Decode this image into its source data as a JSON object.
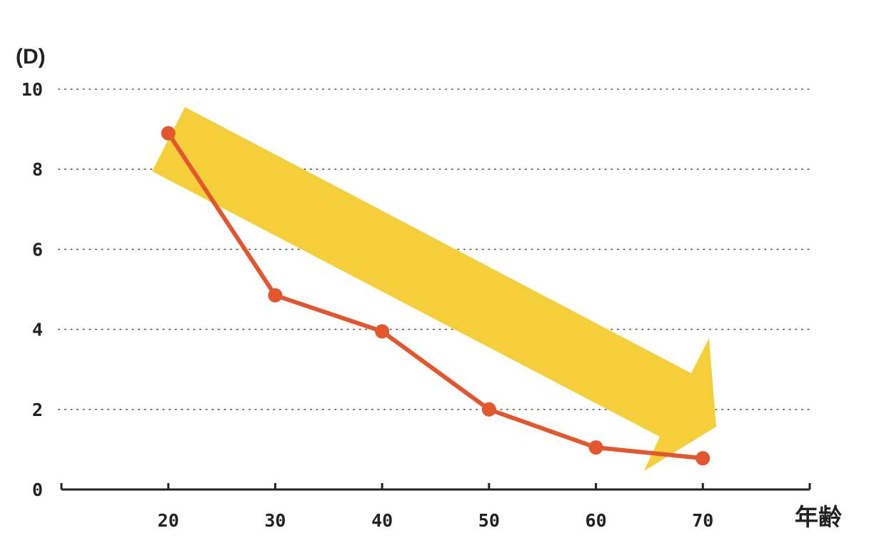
{
  "chart_data": {
    "type": "line",
    "title": "",
    "ylabel_unit": "(D)",
    "xlabel": "年齢",
    "x": [
      20,
      30,
      40,
      50,
      60,
      70
    ],
    "series": [
      {
        "values": [
          8.9,
          4.85,
          3.95,
          2.0,
          1.05,
          0.78
        ],
        "color": "#e4572e"
      }
    ],
    "xlim": [
      10,
      80
    ],
    "ylim": [
      0,
      10
    ],
    "yticks": [
      "0",
      "2",
      "4",
      "6",
      "8",
      "10"
    ],
    "xticks": [
      "20",
      "30",
      "40",
      "50",
      "60",
      "70"
    ],
    "grid": "horizontal-dotted",
    "trend_arrow": {
      "direction": "down-right",
      "color": "#f5cf3a"
    }
  }
}
